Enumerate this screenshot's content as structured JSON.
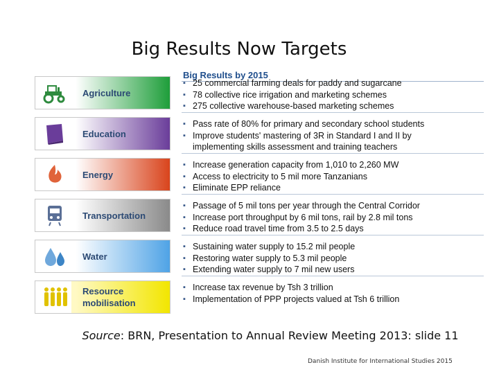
{
  "slide": {
    "title": "Big Results Now Targets",
    "column_header": "Big Results by 2015",
    "source_label": "Source",
    "source_text": ": BRN, Presentation to Annual Review Meeting 2013: slide 11",
    "footer": "Danish Institute for International Studies 2015"
  },
  "sectors": [
    {
      "label": "Agriculture",
      "icon": "tractor-icon",
      "color_start": "#ffffff",
      "color_end": "#1e9e3a",
      "bullets": [
        "25 commercial farming deals for paddy and sugarcane",
        "78 collective rice irrigation and marketing schemes",
        "275 collective warehouse-based marketing schemes"
      ]
    },
    {
      "label": "Education",
      "icon": "book-icon",
      "color_start": "#ffffff",
      "color_end": "#6a3d9a",
      "bullets": [
        "Pass rate of 80% for primary and secondary school students",
        "Improve students' mastering of 3R in Standard I and II by",
        "implementing skills assessment and training teachers"
      ]
    },
    {
      "label": "Energy",
      "icon": "flame-icon",
      "color_start": "#ffffff",
      "color_end": "#d9441c",
      "bullets": [
        "Increase generation capacity from 1,010 to 2,260 MW",
        "Access to electricity to 5 mil more Tanzanians",
        "Eliminate EPP reliance"
      ]
    },
    {
      "label": "Transportation",
      "icon": "train-icon",
      "color_start": "#ffffff",
      "color_end": "#8a8a8a",
      "bullets": [
        "Passage of 5 mil tons per year through the Central Corridor",
        "Increase port throughput by 6 mil tons, rail by 2.8 mil tons",
        "Reduce road travel time from 3.5 to 2.5 days"
      ]
    },
    {
      "label": "Water",
      "icon": "water-drops-icon",
      "color_start": "#ffffff",
      "color_end": "#4fa3e6",
      "bullets": [
        "Sustaining water supply to 15.2 mil people",
        "Restoring water supply to 5.3 mil people",
        "Extending water supply to 7 mil new users"
      ]
    },
    {
      "label": "Resource mobilisation",
      "icon": "people-icon",
      "color_start": "#fff9c4",
      "color_end": "#f2e600",
      "bullets": [
        "Increase tax revenue by Tsh 3 trillion",
        "Implementation of PPP projects valued at Tsh 6 trillion"
      ]
    }
  ]
}
